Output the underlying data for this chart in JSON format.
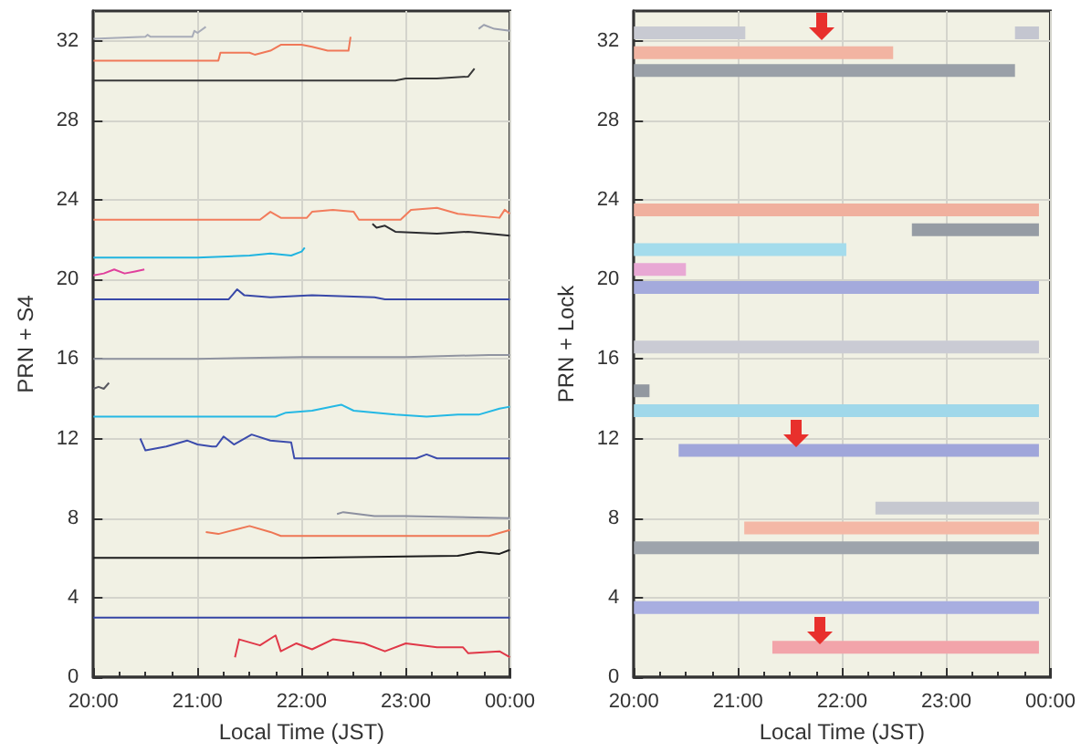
{
  "chart_data": [
    {
      "type": "line",
      "xlabel": "Local Time (JST)",
      "ylabel": "PRN + S4",
      "xlim": [
        20,
        24
      ],
      "ylim": [
        0,
        33.5
      ],
      "xticks": [
        {
          "value": 20,
          "label": "20:00"
        },
        {
          "value": 21,
          "label": "21:00"
        },
        {
          "value": 22,
          "label": "22:00"
        },
        {
          "value": 23,
          "label": "23:00"
        },
        {
          "value": 24,
          "label": "00:00"
        }
      ],
      "yticks": [
        0,
        4,
        8,
        12,
        16,
        20,
        24,
        28,
        32
      ],
      "grid": true,
      "marker": "none",
      "line_style": "solid",
      "series": [
        {
          "color": "#a8acb8",
          "x": [
            20,
            20.5,
            20.52,
            20.55,
            20.95,
            20.97,
            21.0,
            21.08
          ],
          "values": [
            32.1,
            32.2,
            32.3,
            32.2,
            32.2,
            32.5,
            32.4,
            32.7
          ]
        },
        {
          "color": "#9ca0ae",
          "x": [
            23.7,
            23.75,
            23.85,
            24
          ],
          "values": [
            32.6,
            32.8,
            32.6,
            32.5
          ]
        },
        {
          "color": "#f07858",
          "x": [
            20,
            21.2,
            21.22,
            21.5,
            21.55,
            21.7,
            21.8,
            22,
            22.1,
            22.25,
            22.45,
            22.47
          ],
          "values": [
            31,
            31,
            31.4,
            31.4,
            31.3,
            31.5,
            31.8,
            31.8,
            31.7,
            31.5,
            31.5,
            32.2
          ]
        },
        {
          "color": "#383838",
          "x": [
            20,
            21,
            22,
            22.9,
            23,
            23.3,
            23.6,
            23.66
          ],
          "values": [
            30,
            30,
            30,
            30,
            30.1,
            30.1,
            30.2,
            30.6
          ]
        },
        {
          "color": "#f27c5c",
          "x": [
            20,
            21.6,
            21.7,
            21.8,
            22.05,
            22.1,
            22.3,
            22.5,
            22.55,
            22.95,
            23.05,
            23.3,
            23.5,
            23.9,
            23.95,
            24
          ],
          "values": [
            23,
            23,
            23.4,
            23.1,
            23.1,
            23.4,
            23.5,
            23.4,
            23,
            23,
            23.5,
            23.6,
            23.3,
            23.1,
            23.5,
            23.3
          ]
        },
        {
          "color": "#2c2c30",
          "x": [
            22.68,
            22.72,
            22.8,
            22.9,
            23.3,
            23.6,
            24
          ],
          "values": [
            22.8,
            22.6,
            22.7,
            22.4,
            22.3,
            22.4,
            22.2
          ]
        },
        {
          "color": "#20b4e0",
          "x": [
            20,
            21,
            21.5,
            21.7,
            21.9,
            22,
            22.03
          ],
          "values": [
            21.1,
            21.1,
            21.2,
            21.3,
            21.2,
            21.4,
            21.6
          ]
        },
        {
          "color": "#e0409c",
          "x": [
            20,
            20.1,
            20.2,
            20.3,
            20.4,
            20.49
          ],
          "values": [
            20.2,
            20.3,
            20.5,
            20.3,
            20.4,
            20.5
          ]
        },
        {
          "color": "#3848a8",
          "x": [
            20,
            21.3,
            21.38,
            21.45,
            21.7,
            22.1,
            22.7,
            22.8,
            24
          ],
          "values": [
            19,
            19,
            19.5,
            19.2,
            19.1,
            19.2,
            19.1,
            19,
            19
          ]
        },
        {
          "color": "#9094a0",
          "x": [
            20,
            21,
            22,
            23,
            23.8,
            24
          ],
          "values": [
            16,
            16,
            16.1,
            16.1,
            16.2,
            16.2
          ]
        },
        {
          "color": "#585860",
          "x": [
            20,
            20.05,
            20.1,
            20.15
          ],
          "values": [
            14.5,
            14.6,
            14.5,
            14.8
          ]
        },
        {
          "color": "#24b8e4",
          "x": [
            20,
            21.75,
            21.85,
            22.1,
            22.38,
            22.5,
            22.9,
            23.2,
            23.5,
            23.7,
            23.9,
            24
          ],
          "values": [
            13.1,
            13.1,
            13.3,
            13.4,
            13.7,
            13.4,
            13.2,
            13.1,
            13.2,
            13.2,
            13.5,
            13.6
          ]
        },
        {
          "color": "#3c4cac",
          "x": [
            20.45,
            20.5,
            20.7,
            20.9,
            21.0,
            21.14,
            21.18,
            21.25,
            21.35,
            21.52,
            21.7,
            21.9,
            21.93,
            23.1,
            23.2,
            23.3,
            24
          ],
          "values": [
            12,
            11.4,
            11.6,
            11.9,
            11.7,
            11.6,
            11.6,
            12.1,
            11.7,
            12.2,
            11.9,
            11.8,
            11.0,
            11,
            11.2,
            11,
            11
          ]
        },
        {
          "color": "#8c90a0",
          "x": [
            22.34,
            22.4,
            22.7,
            23,
            24
          ],
          "values": [
            8.2,
            8.3,
            8.1,
            8.1,
            8
          ]
        },
        {
          "color": "#ee7654",
          "x": [
            21.08,
            21.2,
            21.35,
            21.5,
            21.7,
            21.8,
            22.5,
            23.8,
            24
          ],
          "values": [
            7.3,
            7.2,
            7.4,
            7.6,
            7.3,
            7.1,
            7.1,
            7.1,
            7.4
          ]
        },
        {
          "color": "#1c1c1c",
          "x": [
            20,
            22,
            23.5,
            23.7,
            23.9,
            24
          ],
          "values": [
            6,
            6,
            6.1,
            6.3,
            6.2,
            6.4
          ]
        },
        {
          "color": "#3444a4",
          "x": [
            20,
            24
          ],
          "values": [
            3,
            3
          ]
        },
        {
          "color": "#e03848",
          "x": [
            21.36,
            21.4,
            21.6,
            21.75,
            21.8,
            21.95,
            22.1,
            22.3,
            22.6,
            22.8,
            23,
            23.3,
            23.55,
            23.6,
            23.9,
            24
          ],
          "values": [
            1,
            1.9,
            1.6,
            2.1,
            1.3,
            1.7,
            1.4,
            1.9,
            1.7,
            1.3,
            1.7,
            1.5,
            1.5,
            1.2,
            1.3,
            1.0
          ]
        }
      ]
    },
    {
      "type": "line",
      "xlabel": "Local Time (JST)",
      "ylabel": "PRN + Lock",
      "xlim": [
        20,
        24
      ],
      "ylim": [
        0,
        33.5
      ],
      "xticks": [
        {
          "value": 20,
          "label": "20:00"
        },
        {
          "value": 21,
          "label": "21:00"
        },
        {
          "value": 22,
          "label": "22:00"
        },
        {
          "value": 23,
          "label": "23:00"
        },
        {
          "value": 24,
          "label": "00:00"
        }
      ],
      "yticks": [
        0,
        4,
        8,
        12,
        16,
        20,
        24,
        28,
        32
      ],
      "grid": true,
      "marker": "none",
      "line_style": "solid",
      "series": [
        {
          "color": "#c8cad2",
          "x": [
            20,
            21.07
          ],
          "values": [
            32.4,
            32.4
          ]
        },
        {
          "color": "#c4c6d0",
          "x": [
            23.66,
            23.89
          ],
          "values": [
            32.4,
            32.4
          ]
        },
        {
          "color": "#f2b4a2",
          "x": [
            20,
            22.49
          ],
          "values": [
            31.4,
            31.4
          ]
        },
        {
          "color": "#9aa0a8",
          "x": [
            20,
            23.66
          ],
          "values": [
            30.5,
            30.5
          ]
        },
        {
          "color": "#f0b09e",
          "x": [
            20,
            23.89
          ],
          "values": [
            23.5,
            23.5
          ]
        },
        {
          "color": "#969ca4",
          "x": [
            22.67,
            23.89
          ],
          "values": [
            22.5,
            22.5
          ]
        },
        {
          "color": "#a4dcec",
          "x": [
            20,
            22.04
          ],
          "values": [
            21.5,
            21.5
          ]
        },
        {
          "color": "#e8a8d4",
          "x": [
            20,
            20.5
          ],
          "values": [
            20.5,
            20.5
          ]
        },
        {
          "color": "#a4aadc",
          "x": [
            20,
            23.89
          ],
          "values": [
            19.6,
            19.6
          ]
        },
        {
          "color": "#cacbd4",
          "x": [
            20,
            23.89
          ],
          "values": [
            16.6,
            16.6
          ]
        },
        {
          "color": "#9298a0",
          "x": [
            20,
            20.15
          ],
          "values": [
            14.4,
            14.4
          ]
        },
        {
          "color": "#a0d8ea",
          "x": [
            20,
            23.89
          ],
          "values": [
            13.4,
            13.4
          ]
        },
        {
          "color": "#a0a6da",
          "x": [
            20.43,
            23.89
          ],
          "values": [
            11.4,
            11.4
          ]
        },
        {
          "color": "#c6c8d0",
          "x": [
            22.32,
            23.89
          ],
          "values": [
            8.5,
            8.5
          ]
        },
        {
          "color": "#f4b8a6",
          "x": [
            21.06,
            23.89
          ],
          "values": [
            7.5,
            7.5
          ]
        },
        {
          "color": "#9ea4ac",
          "x": [
            20,
            23.89
          ],
          "values": [
            6.5,
            6.5
          ]
        },
        {
          "color": "#a8aee0",
          "x": [
            20,
            23.89
          ],
          "values": [
            3.5,
            3.5
          ]
        },
        {
          "color": "#f2a4aa",
          "x": [
            21.33,
            23.89
          ],
          "values": [
            1.5,
            1.5
          ]
        }
      ]
    }
  ]
}
